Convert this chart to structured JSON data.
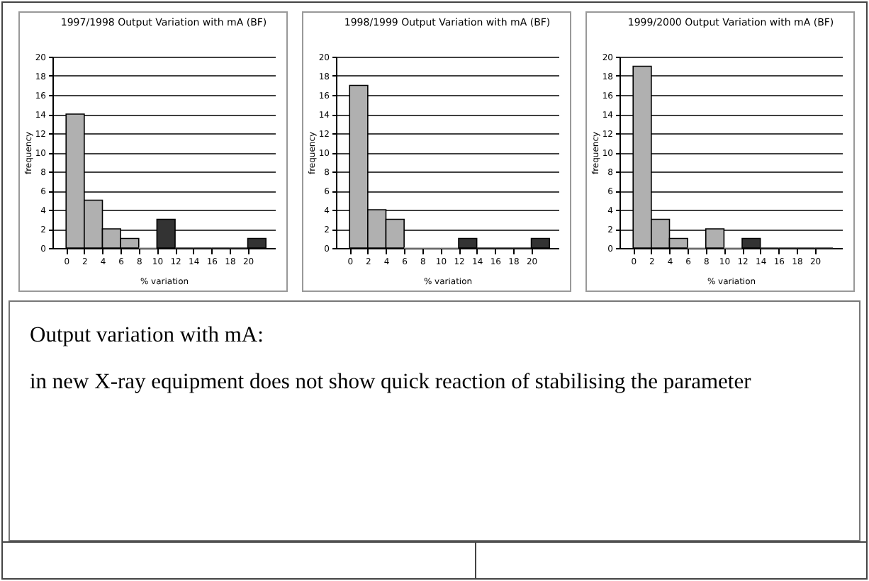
{
  "chart_data": [
    {
      "type": "histogram",
      "title": "1997/1998 Output Variation with mA (BF)",
      "xlabel": "% variation",
      "ylabel": "frequency",
      "bins": [
        0,
        2,
        4,
        6,
        8,
        10,
        12,
        14,
        16,
        18,
        20,
        22
      ],
      "values": [
        14,
        5,
        2,
        1,
        0,
        3,
        0,
        0,
        0,
        0,
        1
      ],
      "colors": [
        "#b0b0b0",
        "#b0b0b0",
        "#b0b0b0",
        "#b0b0b0",
        "#b0b0b0",
        "#333333",
        "#333333",
        "#333333",
        "#333333",
        "#333333",
        "#333333"
      ],
      "xlim": [
        -1.5,
        23
      ],
      "xticks": [
        0,
        2,
        4,
        6,
        8,
        10,
        12,
        14,
        16,
        18,
        20
      ],
      "ylim": [
        0,
        20
      ],
      "yticks": [
        0,
        2,
        4,
        6,
        8,
        10,
        12,
        14,
        16,
        18,
        20
      ],
      "grid": "y"
    },
    {
      "type": "histogram",
      "title": "1998/1999 Output Variation with mA (BF)",
      "xlabel": "% variation",
      "ylabel": "frequency",
      "bins": [
        0,
        2,
        4,
        6,
        8,
        10,
        12,
        14,
        16,
        18,
        20,
        22
      ],
      "values": [
        17,
        4,
        3,
        0,
        0,
        0,
        1,
        0,
        0,
        0,
        1
      ],
      "colors": [
        "#b0b0b0",
        "#b0b0b0",
        "#b0b0b0",
        "#b0b0b0",
        "#b0b0b0",
        "#b0b0b0",
        "#333333",
        "#333333",
        "#333333",
        "#333333",
        "#333333"
      ],
      "xlim": [
        -1.5,
        23
      ],
      "xticks": [
        0,
        2,
        4,
        6,
        8,
        10,
        12,
        14,
        16,
        18,
        20
      ],
      "ylim": [
        0,
        20
      ],
      "yticks": [
        0,
        2,
        4,
        6,
        8,
        10,
        12,
        14,
        16,
        18,
        20
      ],
      "grid": "y"
    },
    {
      "type": "histogram",
      "title": "1999/2000 Output Variation with mA (BF)",
      "xlabel": "% variation",
      "ylabel": "frequency",
      "bins": [
        0,
        2,
        4,
        6,
        8,
        10,
        12,
        14,
        16,
        18,
        20,
        22
      ],
      "values": [
        19,
        3,
        1,
        0,
        2,
        0,
        1,
        0,
        0,
        0,
        0
      ],
      "colors": [
        "#b0b0b0",
        "#b0b0b0",
        "#b0b0b0",
        "#b0b0b0",
        "#b0b0b0",
        "#b0b0b0",
        "#333333",
        "#333333",
        "#333333",
        "#333333",
        "#333333"
      ],
      "xlim": [
        -1.5,
        23
      ],
      "xticks": [
        0,
        2,
        4,
        6,
        8,
        10,
        12,
        14,
        16,
        18,
        20
      ],
      "ylim": [
        0,
        20
      ],
      "yticks": [
        0,
        2,
        4,
        6,
        8,
        10,
        12,
        14,
        16,
        18,
        20
      ],
      "grid": "y"
    },
    {
      "type": "other",
      "annotations": [
        "Output variation with mA:",
        "in new X-ray equipment does not show quick reaction of stabilising the parameter"
      ]
    }
  ]
}
